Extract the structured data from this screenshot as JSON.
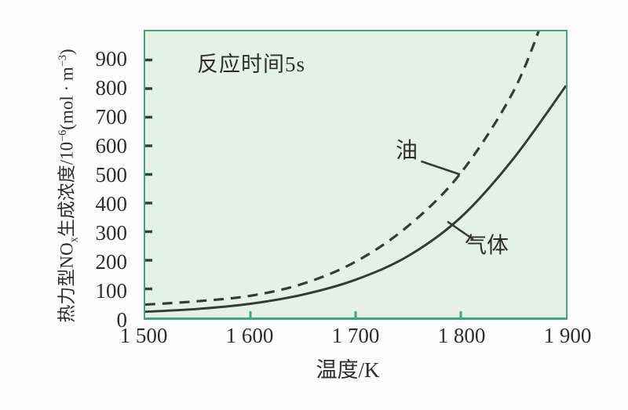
{
  "figure": {
    "annotation": "反应时间5s",
    "x_axis_title": "温度/K",
    "y_axis_title": {
      "part1": "热力型NO",
      "sub_x": "x",
      "part2": "生成浓度/10",
      "sup_exp1": "−6",
      "part3": "(mol · m",
      "sup_exp2": "−3",
      "part4": ")"
    }
  },
  "chart_data": {
    "type": "line",
    "title": "",
    "annotation": "反应时间5s",
    "xlabel": "温度/K",
    "ylabel": "热力型NOx生成浓度/10^-6 (mol·m^-3)",
    "xlim": [
      1500,
      1900
    ],
    "ylim": [
      0,
      1000
    ],
    "grid": false,
    "legend_position": "inline-labels-with-leader-lines",
    "x_tick_values": [
      1500,
      1600,
      1700,
      1800,
      1900
    ],
    "x_tick_labels": [
      "1 500",
      "1 600",
      "1 700",
      "1 800",
      "1 900"
    ],
    "x_tick_marks": [
      1600,
      1700,
      1800
    ],
    "y_tick_values": [
      0,
      100,
      200,
      300,
      400,
      500,
      600,
      700,
      800,
      900
    ],
    "y_tick_labels": [
      "0",
      "100",
      "200",
      "300",
      "400",
      "500",
      "600",
      "700",
      "800",
      "900"
    ],
    "y_tick_marks": [
      100,
      200,
      300,
      400,
      500,
      600,
      700,
      800,
      900
    ],
    "series": [
      {
        "name": "油",
        "style": "dashed",
        "points": [
          [
            1500,
            45
          ],
          [
            1550,
            57
          ],
          [
            1600,
            76
          ],
          [
            1650,
            118
          ],
          [
            1700,
            195
          ],
          [
            1750,
            320
          ],
          [
            1800,
            505
          ],
          [
            1850,
            790
          ],
          [
            1880,
            1060
          ]
        ]
      },
      {
        "name": "气体",
        "style": "solid",
        "points": [
          [
            1500,
            20
          ],
          [
            1550,
            30
          ],
          [
            1600,
            48
          ],
          [
            1650,
            80
          ],
          [
            1700,
            132
          ],
          [
            1750,
            215
          ],
          [
            1800,
            350
          ],
          [
            1850,
            555
          ],
          [
            1900,
            810
          ]
        ]
      }
    ]
  },
  "colors": {
    "canvas_bg": "#fcfdfc",
    "plot_bg": "#e4f1e5",
    "plot_border": "#44a47c",
    "curve": "#333b35",
    "tick_dark": "#24453a",
    "axis_green": "#44a47c",
    "text": "#2d2d2d"
  }
}
